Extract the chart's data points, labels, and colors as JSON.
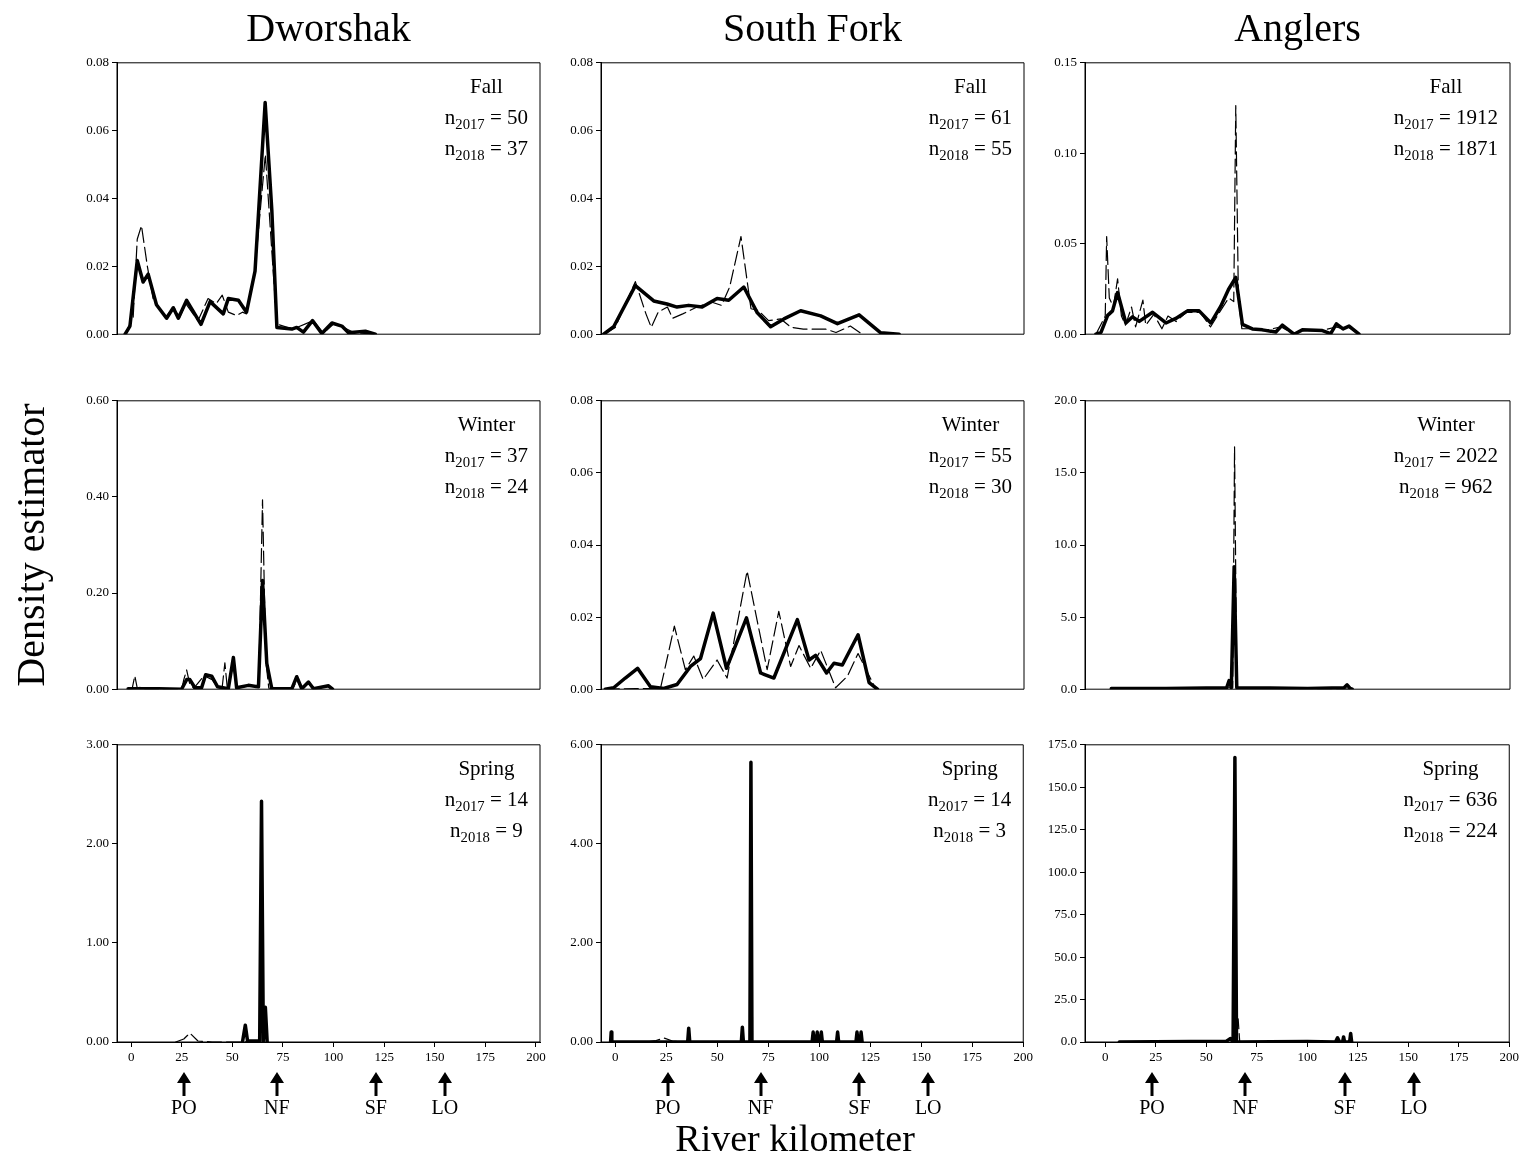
{
  "chart_data": [
    {
      "type": "line",
      "title": "Dworshak",
      "marker": "none",
      "tick_labels": "y",
      "xlim": [
        -7,
        202
      ],
      "ylim": [
        0,
        0.08
      ],
      "yticks": [
        {
          "value": 0,
          "label": "0.00"
        },
        {
          "value": 0.02,
          "label": "0.02"
        },
        {
          "value": 0.04,
          "label": "0.04"
        },
        {
          "value": 0.06,
          "label": "0.06"
        },
        {
          "value": 0.08,
          "label": "0.08"
        }
      ],
      "annotations": [
        "Fall",
        "n$_{2017}$ = 50",
        "n$_{2018}$ = 37"
      ],
      "series": [
        {
          "color": "#000000",
          "line_style": "dashed",
          "x": [
            -3,
            1,
            3,
            5.1,
            8,
            11,
            17,
            21,
            24,
            27,
            33,
            38,
            42,
            45,
            48,
            52,
            55,
            57,
            61,
            66.3,
            70,
            72,
            80,
            90,
            95,
            100,
            105,
            110,
            120
          ],
          "values": [
            0,
            0.005,
            0.028,
            0.032,
            0.02,
            0.01,
            0.005,
            0.008,
            0.005,
            0.009,
            0.004,
            0.0105,
            0.009,
            0.0115,
            0.0065,
            0.0055,
            0.0065,
            0.006,
            0.018,
            0.053,
            0.02,
            0.003,
            0.0015,
            0.004,
            0.0003,
            0.003,
            0.002,
            0.0005,
            0
          ]
        },
        {
          "color": "#000000",
          "line_style": "solid",
          "x": [
            -3,
            -0.6,
            3,
            5.9,
            8.4,
            12.5,
            17.5,
            20.8,
            23.3,
            27.4,
            34.5,
            39,
            45.5,
            48,
            53,
            57,
            61.2,
            66.2,
            69.5,
            72,
            79.4,
            81.8,
            85.1,
            89.6,
            94.2,
            99.2,
            104.1,
            107.4,
            115.7,
            120.6
          ],
          "values": [
            0,
            0.0024,
            0.0217,
            0.0154,
            0.0177,
            0.0087,
            0.0047,
            0.0078,
            0.0047,
            0.01,
            0.0029,
            0.0096,
            0.006,
            0.0105,
            0.01,
            0.0065,
            0.0186,
            0.0683,
            0.0365,
            0.002,
            0.0015,
            0.002,
            0.0006,
            0.004,
            0.0002,
            0.0033,
            0.0024,
            0.0004,
            0.0009,
            0
          ]
        }
      ]
    },
    {
      "type": "line",
      "title": "South Fork",
      "marker": "none",
      "tick_labels": "y",
      "xlim": [
        -7,
        200
      ],
      "ylim": [
        0,
        0.08
      ],
      "yticks": [
        {
          "value": 0,
          "label": "0.00"
        },
        {
          "value": 0.02,
          "label": "0.02"
        },
        {
          "value": 0.04,
          "label": "0.04"
        },
        {
          "value": 0.06,
          "label": "0.06"
        },
        {
          "value": 0.08,
          "label": "0.08"
        }
      ],
      "annotations": [
        "Fall",
        "n$_{2017}$ = 61",
        "n$_{2018}$ = 55"
      ],
      "series": [
        {
          "color": "#000000",
          "line_style": "dashed",
          "x": [
            -5.7,
            0,
            9.8,
            15,
            17.6,
            21,
            25.5,
            28,
            33,
            40,
            47,
            52,
            56,
            61.5,
            66.4,
            70,
            75,
            81,
            86,
            92,
            97,
            103,
            108,
            115,
            120.8
          ],
          "values": [
            0,
            0.002,
            0.0155,
            0.006,
            0.002,
            0.0065,
            0.008,
            0.0047,
            0.006,
            0.008,
            0.0095,
            0.0085,
            0.014,
            0.0288,
            0.0075,
            0.007,
            0.004,
            0.0045,
            0.002,
            0.0015,
            0.0015,
            0.0015,
            0.0005,
            0.0024,
            0
          ]
        },
        {
          "color": "#000000",
          "line_style": "solid",
          "x": [
            -5.7,
            -0.8,
            9.8,
            18.8,
            25.3,
            30.2,
            35.9,
            42.5,
            49.8,
            55.5,
            62.9,
            69.5,
            76,
            82.5,
            90.7,
            100.5,
            108.7,
            119.3,
            129.9,
            138.9
          ],
          "values": [
            0,
            0.0022,
            0.0143,
            0.0098,
            0.0089,
            0.008,
            0.0085,
            0.008,
            0.0105,
            0.01,
            0.0139,
            0.0063,
            0.0022,
            0.0045,
            0.0069,
            0.0054,
            0.0031,
            0.0057,
            0.0004,
            0
          ]
        }
      ]
    },
    {
      "type": "line",
      "title": "Anglers",
      "marker": "none",
      "tick_labels": "y",
      "xlim": [
        -10,
        200
      ],
      "ylim": [
        0,
        0.15
      ],
      "yticks": [
        {
          "value": 0,
          "label": "0.00"
        },
        {
          "value": 0.05,
          "label": "0.05"
        },
        {
          "value": 0.1,
          "label": "0.10"
        },
        {
          "value": 0.15,
          "label": "0.15"
        }
      ],
      "annotations": [
        "Fall",
        "n$_{2017}$ = 1912",
        "n$_{2018}$ = 1871"
      ],
      "series": [
        {
          "color": "#000000",
          "line_style": "dashed",
          "x": [
            -4.6,
            0,
            0.7,
            2,
            4,
            6.1,
            8,
            10,
            13,
            15,
            18.6,
            20,
            24,
            28,
            31,
            35,
            40,
            47,
            52,
            57,
            61,
            63.5,
            64.5,
            65.8,
            67.5,
            73,
            78,
            87,
            93,
            97,
            107,
            114,
            117.5,
            120,
            125.4
          ],
          "values": [
            0,
            0.01,
            0.054,
            0.02,
            0.015,
            0.0306,
            0.01,
            0.005,
            0.015,
            0.004,
            0.0188,
            0.005,
            0.011,
            0.003,
            0.01,
            0.007,
            0.012,
            0.012,
            0.004,
            0.013,
            0.02,
            0.018,
            0.1264,
            0.02,
            0.003,
            0.003,
            0.002,
            0.004,
            0,
            0.002,
            0.002,
            0.004,
            0.003,
            0.004,
            0
          ]
        },
        {
          "color": "#000000",
          "line_style": "solid",
          "x": [
            -4.6,
            -2.1,
            1.2,
            3.6,
            6.1,
            10.2,
            13.5,
            16.8,
            23.4,
            30,
            34.9,
            40.6,
            46.4,
            52.2,
            57.1,
            60.9,
            64.5,
            67.8,
            72.7,
            77.7,
            84.3,
            87.5,
            93.3,
            97.4,
            107.3,
            111.4,
            114.2,
            117.5,
            120.5,
            125.4
          ],
          "values": [
            0,
            0.001,
            0.0104,
            0.0129,
            0.023,
            0.0062,
            0.0096,
            0.0071,
            0.0121,
            0.0062,
            0.0087,
            0.0129,
            0.0129,
            0.0062,
            0.0155,
            0.0247,
            0.0314,
            0.0054,
            0.0029,
            0.0024,
            0.0012,
            0.005,
            0,
            0.0024,
            0.002,
            0.0003,
            0.0057,
            0.0029,
            0.0045,
            0
          ]
        }
      ]
    },
    {
      "type": "line",
      "ylabel": "Density estimator",
      "marker": "none",
      "tick_labels": "y",
      "xlim": [
        -7,
        202
      ],
      "ylim": [
        0,
        0.6
      ],
      "yticks": [
        {
          "value": 0,
          "label": "0.00"
        },
        {
          "value": 0.2,
          "label": "0.20"
        },
        {
          "value": 0.4,
          "label": "0.40"
        },
        {
          "value": 0.6,
          "label": "0.60"
        }
      ],
      "annotations": [
        "Winter",
        "n$_{2017}$ = 37",
        "n$_{2018}$ = 24"
      ],
      "series": [
        {
          "color": "#000000",
          "line_style": "dashed",
          "x": [
            -1.5,
            0.5,
            1.8,
            3,
            5,
            7,
            25,
            26,
            27.4,
            29,
            31,
            36,
            40,
            43,
            45,
            46.3,
            47.5,
            50.5,
            52,
            58,
            63,
            64.9,
            66.5,
            68,
            80,
            82,
            84,
            88,
            90,
            97.5,
            99.5
          ],
          "values": [
            0,
            0.001,
            0.028,
            0.002,
            0.005,
            0,
            0,
            0.02,
            0.04,
            0.01,
            0.002,
            0.028,
            0.02,
            0.003,
            0.005,
            0.055,
            0.002,
            0.05,
            0.002,
            0.008,
            0.005,
            0.394,
            0.06,
            0.002,
            0.002,
            0.02,
            0.001,
            0.012,
            0,
            0.006,
            0
          ]
        },
        {
          "color": "#000000",
          "line_style": "solid",
          "x": [
            -1.5,
            13.4,
            24.9,
            27.4,
            29,
            31.5,
            34.8,
            36.8,
            39.8,
            42.7,
            48,
            50.5,
            52.1,
            57.9,
            62.9,
            64.9,
            67,
            69.5,
            79.4,
            81.8,
            84.3,
            87.6,
            90.1,
            97.5,
            99.5
          ],
          "values": [
            0.001,
            0.001,
            0,
            0.02,
            0.02,
            0.003,
            0.003,
            0.03,
            0.027,
            0.005,
            0.001,
            0.066,
            0.003,
            0.008,
            0.005,
            0.226,
            0.054,
            0.001,
            0.001,
            0.026,
            0.001,
            0.015,
            0.001,
            0.007,
            0
          ]
        }
      ]
    },
    {
      "type": "line",
      "marker": "none",
      "tick_labels": "y",
      "xlim": [
        -7,
        200
      ],
      "ylim": [
        0,
        0.08
      ],
      "yticks": [
        {
          "value": 0,
          "label": "0.00"
        },
        {
          "value": 0.02,
          "label": "0.02"
        },
        {
          "value": 0.04,
          "label": "0.04"
        },
        {
          "value": 0.06,
          "label": "0.06"
        },
        {
          "value": 0.08,
          "label": "0.08"
        }
      ],
      "annotations": [
        "Winter",
        "n$_{2017}$ = 55",
        "n$_{2018}$ = 30"
      ],
      "series": [
        {
          "color": "#000000",
          "line_style": "dashed",
          "x": [
            -4.9,
            10,
            22.1,
            28.9,
            34.3,
            38.4,
            43,
            49.8,
            54.7,
            64.5,
            74.3,
            80,
            85.8,
            89.9,
            95.6,
            100.5,
            107.8,
            113.6,
            118.8,
            127.5
          ],
          "values": [
            0,
            0.0002,
            0.0002,
            0.0175,
            0.0054,
            0.0092,
            0.0027,
            0.0081,
            0.0031,
            0.0328,
            0.0054,
            0.0216,
            0.0063,
            0.0121,
            0.0058,
            0.0108,
            0.0004,
            0.0036,
            0.0099,
            0
          ]
        },
        {
          "color": "#000000",
          "line_style": "solid",
          "x": [
            -4.9,
            -0.8,
            4.9,
            10.9,
            17.2,
            23.7,
            30.2,
            36.8,
            41.7,
            47.9,
            54.4,
            64.2,
            71.1,
            77.6,
            89.1,
            94.8,
            98,
            103.4,
            107,
            111.1,
            118.8,
            124.2,
            128.3
          ],
          "values": [
            0,
            0.0004,
            0.0031,
            0.0058,
            0.0007,
            0.0002,
            0.0013,
            0.0063,
            0.0085,
            0.0211,
            0.0058,
            0.0198,
            0.0045,
            0.0031,
            0.0193,
            0.0081,
            0.0094,
            0.0045,
            0.0072,
            0.0067,
            0.0151,
            0.0018,
            0
          ]
        }
      ]
    },
    {
      "type": "line",
      "marker": "none",
      "tick_labels": "y",
      "xlim": [
        -10,
        200
      ],
      "ylim": [
        0,
        20
      ],
      "yticks": [
        {
          "value": 0,
          "label": "0.0"
        },
        {
          "value": 5,
          "label": "5.0"
        },
        {
          "value": 10,
          "label": "10.0"
        },
        {
          "value": 15,
          "label": "15.0"
        },
        {
          "value": 20,
          "label": "20.0"
        }
      ],
      "annotations": [
        "Winter",
        "n$_{2017}$ = 2022",
        "n$_{2018}$ = 962"
      ],
      "series": [
        {
          "color": "#000000",
          "line_style": "dashed",
          "x": [
            3,
            63,
            63.9,
            65,
            120.5
          ],
          "values": [
            0.05,
            0.1,
            16.8,
            0.1,
            0
          ]
        },
        {
          "color": "#000000",
          "line_style": "solid",
          "x": [
            3,
            30,
            60,
            61.2,
            62.3,
            63.7,
            65,
            100,
            118,
            119.5,
            121,
            122
          ],
          "values": [
            0.05,
            0.05,
            0.1,
            0.6,
            0.1,
            8.5,
            0.1,
            0.05,
            0.1,
            0.3,
            0.05,
            0
          ]
        }
      ]
    },
    {
      "type": "line",
      "marker": "none",
      "xlim": [
        -7,
        202
      ],
      "ylim": [
        0,
        3
      ],
      "yticks": [
        {
          "value": 0,
          "label": "0.00"
        },
        {
          "value": 1,
          "label": "1.00"
        },
        {
          "value": 2,
          "label": "2.00"
        },
        {
          "value": 3,
          "label": "3.00"
        }
      ],
      "xticks": [
        0,
        25,
        50,
        75,
        100,
        125,
        150,
        175,
        200
      ],
      "annotations": [
        "Spring",
        "n$_{2017}$ = 14",
        "n$_{2018}$ = 9",
        "PO",
        "NF",
        "SF",
        "LO"
      ],
      "series": [
        {
          "color": "#000000",
          "line_style": "dashed",
          "x": [
            22,
            26,
            29,
            33,
            40,
            55,
            64,
            65
          ],
          "values": [
            0,
            0.03,
            0.09,
            0.01,
            0,
            0,
            0.01,
            0.01
          ]
        },
        {
          "color": "#000000",
          "line_style": "solid",
          "x": [
            55,
            56.4,
            57.5,
            63.5,
            64.4,
            65.3,
            66.3,
            67.2
          ],
          "values": [
            0,
            0.17,
            0.01,
            0.01,
            2.43,
            0.01,
            0.35,
            0
          ]
        }
      ]
    },
    {
      "type": "line",
      "xlabel": "River kilometer",
      "marker": "none",
      "xlim": [
        -7,
        200
      ],
      "ylim": [
        0,
        6
      ],
      "yticks": [
        {
          "value": 0,
          "label": "0.00"
        },
        {
          "value": 2,
          "label": "2.00"
        },
        {
          "value": 4,
          "label": "4.00"
        },
        {
          "value": 6,
          "label": "6.00"
        }
      ],
      "xticks": [
        0,
        25,
        50,
        75,
        100,
        125,
        150,
        175,
        200
      ],
      "annotations": [
        "Spring",
        "n$_{2017}$ = 14",
        "n$_{2018}$ = 3",
        "PO",
        "NF",
        "SF",
        "LO"
      ],
      "series": [
        {
          "color": "#000000",
          "line_style": "dashed",
          "x": [
            15,
            20,
            24,
            28,
            32
          ],
          "values": [
            0,
            0.03,
            0.08,
            0.02,
            0
          ]
        },
        {
          "color": "#000000",
          "line_style": "solid",
          "x": [
            -2.3,
            -2,
            -1.7,
            35.5,
            36,
            36.5,
            61.8,
            62.3,
            62.8,
            66,
            66.5,
            67,
            96.5,
            97,
            97.5,
            98.5,
            99,
            99.5,
            100.5,
            101,
            101.5,
            108.5,
            109,
            109.5,
            118,
            118.5,
            119,
            120,
            120.5,
            121
          ],
          "values": [
            0,
            0.2,
            0,
            0,
            0.28,
            0,
            0,
            0.3,
            0,
            0,
            5.65,
            0,
            0,
            0.2,
            0,
            0,
            0.2,
            0,
            0,
            0.2,
            0,
            0,
            0.2,
            0,
            0,
            0.2,
            0,
            0,
            0.2,
            0
          ]
        }
      ]
    },
    {
      "type": "line",
      "marker": "none",
      "xlim": [
        -10,
        200
      ],
      "ylim": [
        0,
        175
      ],
      "yticks": [
        {
          "value": 0,
          "label": "0.0"
        },
        {
          "value": 25,
          "label": "25.0"
        },
        {
          "value": 50,
          "label": "50.0"
        },
        {
          "value": 75,
          "label": "75.0"
        },
        {
          "value": 100,
          "label": "100.0"
        },
        {
          "value": 125,
          "label": "125.0"
        },
        {
          "value": 150,
          "label": "150.0"
        },
        {
          "value": 175,
          "label": "175.0"
        }
      ],
      "xticks": [
        0,
        25,
        50,
        75,
        100,
        125,
        150,
        175,
        200
      ],
      "annotations": [
        "Spring",
        "n$_{2017}$ = 636",
        "n$_{2018}$ = 224",
        "PO",
        "NF",
        "SF",
        "LO"
      ],
      "series": [
        {
          "color": "#000000",
          "line_style": "dashed",
          "x": [
            65,
            65.8,
            66.6
          ],
          "values": [
            0,
            13.6,
            0
          ]
        },
        {
          "color": "#000000",
          "line_style": "solid",
          "x": [
            7,
            60,
            62,
            63.3,
            64.2,
            65,
            100,
            114,
            115,
            116,
            117.5,
            118,
            118.5,
            121,
            121.5,
            122
          ],
          "values": [
            0,
            0.5,
            2,
            0,
            167.5,
            0,
            0.3,
            0,
            2.5,
            0,
            0,
            3,
            0,
            0,
            5,
            0
          ]
        }
      ]
    }
  ]
}
